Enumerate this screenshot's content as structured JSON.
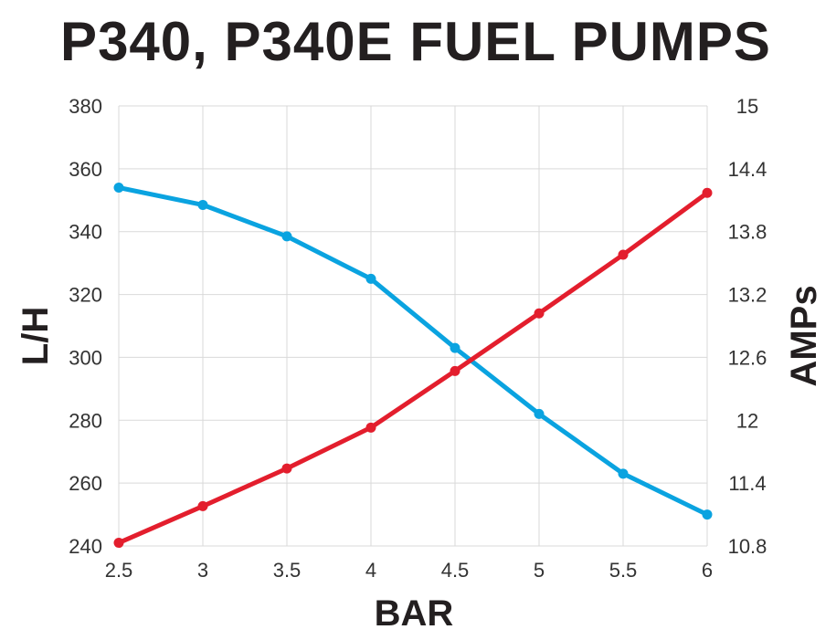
{
  "chart_data": {
    "type": "line",
    "title": "P340, P340E FUEL PUMPS",
    "xlabel": "BAR",
    "ylabel_left": "L/H",
    "ylabel_right": "AMPs",
    "x": [
      2.5,
      3,
      3.5,
      4,
      4.5,
      5,
      5.5,
      6
    ],
    "x_ticks": [
      "2.5",
      "3",
      "3.5",
      "4",
      "4.5",
      "5",
      "5.5",
      "6"
    ],
    "ylim_left": [
      240,
      380
    ],
    "y_ticks_left": [
      "240",
      "260",
      "280",
      "300",
      "320",
      "340",
      "360",
      "380"
    ],
    "ylim_right": [
      10.8,
      15
    ],
    "y_ticks_right": [
      "10.8",
      "11.4",
      "12",
      "12.6",
      "13.2",
      "13.8",
      "14.4",
      "15"
    ],
    "grid": true,
    "series": [
      {
        "axis": "left",
        "color": "#0aa3e0",
        "values": [
          354,
          348.5,
          338.5,
          325,
          303,
          282,
          263,
          250
        ]
      },
      {
        "axis": "right",
        "color": "#e31e2d",
        "values": [
          10.83,
          11.18,
          11.54,
          11.93,
          12.47,
          13.02,
          13.58,
          14.17
        ]
      }
    ]
  }
}
